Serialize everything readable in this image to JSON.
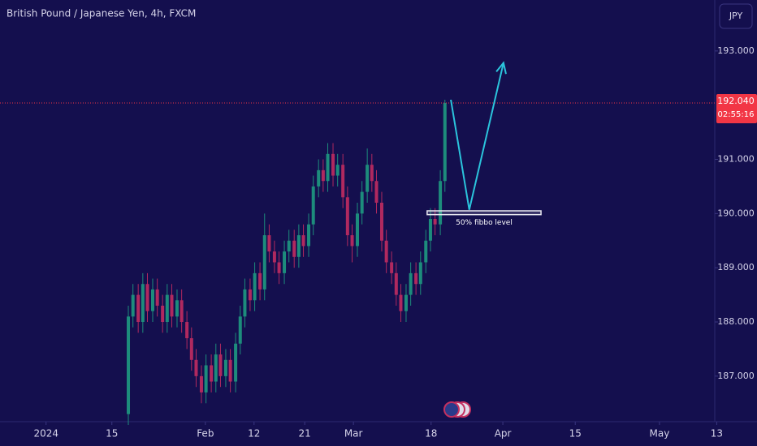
{
  "chart_data": {
    "type": "candlestick",
    "title": "British Pound / Japanese Yen, 4h, FXCM",
    "currency": "JPY",
    "up_color": "#1d8c7c",
    "down_color": "#b0295f",
    "x": [
      12.5,
      13.2,
      14.0,
      14.7,
      15.4,
      16.2,
      16.9,
      17.7,
      18.4,
      19.1,
      19.9,
      20.6,
      21.4,
      22.1,
      22.8,
      23.6,
      24.3,
      25.1,
      25.8,
      26.5,
      27.3,
      28.0,
      28.8,
      29.5,
      30.2,
      31.0,
      31.7,
      32.5,
      33.2,
      33.9,
      34.7,
      35.4,
      36.2,
      36.9,
      37.7,
      38.4,
      39.1,
      39.9,
      40.6,
      41.4,
      42.1,
      42.8,
      43.6,
      44.3,
      45.1,
      45.8,
      46.5,
      47.3,
      48.0,
      48.8,
      49.5,
      50.2,
      51.0,
      51.7,
      52.5,
      53.2,
      53.9,
      54.7,
      55.4,
      56.2,
      56.9,
      57.7,
      58.4,
      59.1,
      59.9,
      60.6
    ],
    "open": [
      186.3,
      188.1,
      188.5,
      188.0,
      188.7,
      188.2,
      188.6,
      188.3,
      188.0,
      188.5,
      188.1,
      188.4,
      188.0,
      187.7,
      187.3,
      187.0,
      186.7,
      187.2,
      186.9,
      187.4,
      187.0,
      187.3,
      186.9,
      187.6,
      188.1,
      188.6,
      188.4,
      188.9,
      188.6,
      189.6,
      189.3,
      189.1,
      188.9,
      189.3,
      189.5,
      189.2,
      189.6,
      189.4,
      189.8,
      190.5,
      190.8,
      190.6,
      191.1,
      190.7,
      190.9,
      190.3,
      189.6,
      189.4,
      190.0,
      190.4,
      190.9,
      190.6,
      190.2,
      189.5,
      189.1,
      188.9,
      188.5,
      188.2,
      188.5,
      188.9,
      188.7,
      189.1,
      189.5,
      189.9,
      189.8,
      190.6
    ],
    "high": [
      188.3,
      188.7,
      188.7,
      188.9,
      188.9,
      188.8,
      188.8,
      188.5,
      188.7,
      188.7,
      188.6,
      188.6,
      188.2,
      187.9,
      187.5,
      187.2,
      187.4,
      187.4,
      187.6,
      187.6,
      187.5,
      187.5,
      187.8,
      188.3,
      188.8,
      188.8,
      189.1,
      189.1,
      190.0,
      189.8,
      189.5,
      189.3,
      189.5,
      189.7,
      189.7,
      189.8,
      189.8,
      190.0,
      190.7,
      191.0,
      191.0,
      191.3,
      191.3,
      191.1,
      191.1,
      190.5,
      189.8,
      190.2,
      190.6,
      191.2,
      191.1,
      190.8,
      190.4,
      189.7,
      189.3,
      189.1,
      188.7,
      188.7,
      189.1,
      189.1,
      189.3,
      189.7,
      190.1,
      190.1,
      190.8,
      192.1
    ],
    "low": [
      186.1,
      187.9,
      187.8,
      187.8,
      188.0,
      188.0,
      188.1,
      187.8,
      187.8,
      187.9,
      187.9,
      187.8,
      187.5,
      187.1,
      186.8,
      186.5,
      186.5,
      186.7,
      186.7,
      186.8,
      186.8,
      186.7,
      186.7,
      187.4,
      187.9,
      188.2,
      188.2,
      188.4,
      188.4,
      189.1,
      188.9,
      188.7,
      188.7,
      189.1,
      189.0,
      189.0,
      189.2,
      189.2,
      189.6,
      190.3,
      190.4,
      190.4,
      190.5,
      190.5,
      190.1,
      189.4,
      189.1,
      189.2,
      189.8,
      190.2,
      190.4,
      190.0,
      189.3,
      188.9,
      188.7,
      188.3,
      188.0,
      188.0,
      188.3,
      188.5,
      188.5,
      188.9,
      189.3,
      189.6,
      189.6,
      190.4
    ],
    "close": [
      188.1,
      188.5,
      188.0,
      188.7,
      188.2,
      188.6,
      188.3,
      188.0,
      188.5,
      188.1,
      188.4,
      188.0,
      187.7,
      187.3,
      187.0,
      186.7,
      187.2,
      186.9,
      187.4,
      187.0,
      187.3,
      186.9,
      187.6,
      188.1,
      188.6,
      188.4,
      188.9,
      188.6,
      189.6,
      189.3,
      189.1,
      188.9,
      189.3,
      189.5,
      189.2,
      189.6,
      189.4,
      189.8,
      190.5,
      190.8,
      190.6,
      191.1,
      190.7,
      190.9,
      190.3,
      189.6,
      189.4,
      190.0,
      190.4,
      190.9,
      190.6,
      190.2,
      189.5,
      189.1,
      188.9,
      188.5,
      188.2,
      188.5,
      188.9,
      188.7,
      189.1,
      189.5,
      189.9,
      189.8,
      190.6,
      192.04
    ],
    "xlim": [
      -7,
      101.6
    ],
    "ylim": [
      186.16,
      193.94
    ],
    "xticks": [
      {
        "value": 0,
        "label": "2024"
      },
      {
        "value": 10,
        "label": "15"
      },
      {
        "value": 24.2,
        "label": "Feb"
      },
      {
        "value": 31.6,
        "label": "12"
      },
      {
        "value": 39.3,
        "label": "21"
      },
      {
        "value": 46.7,
        "label": "Mar"
      },
      {
        "value": 58.5,
        "label": "18"
      },
      {
        "value": 69.4,
        "label": "Apr"
      },
      {
        "value": 80.4,
        "label": "15"
      },
      {
        "value": 93.2,
        "label": "May"
      },
      {
        "value": 101.9,
        "label": "13"
      }
    ],
    "yticks": [
      {
        "value": 193,
        "label": "193.000"
      },
      {
        "value": 191,
        "label": "191.000"
      },
      {
        "value": 190,
        "label": "190.000"
      },
      {
        "value": 189,
        "label": "189.000"
      },
      {
        "value": 188,
        "label": "188.000"
      },
      {
        "value": 187,
        "label": "187.000"
      }
    ],
    "grid": false,
    "last_price": {
      "value": 192.04,
      "label": "192.040",
      "color": "#f23645"
    },
    "countdown": "02:55:16",
    "zone": {
      "x": [
        57.9,
        75.2
      ],
      "y": [
        189.98,
        190.05
      ],
      "label": "50% fibbo level"
    },
    "arrow": {
      "x": [
        61.5,
        64.3,
        69.5
      ],
      "y": [
        192.1,
        190.07,
        192.78
      ],
      "color": "#2bc4dc"
    }
  }
}
